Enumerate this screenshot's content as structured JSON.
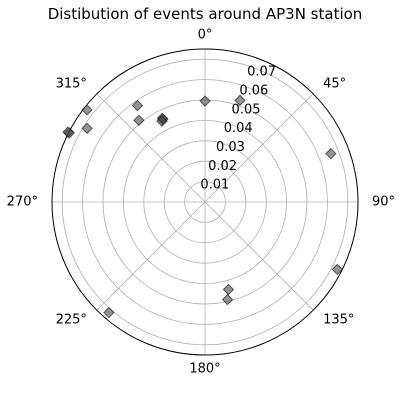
{
  "chart_data": {
    "type": "scatter",
    "projection": "polar",
    "title": "Distibution of events around AP3N station",
    "theta_direction": "clockwise",
    "theta_zero": "top",
    "theta_ticks_deg": [
      0,
      45,
      90,
      135,
      180,
      225,
      270,
      315
    ],
    "theta_tick_labels": [
      "0°",
      "45°",
      "90°",
      "135°",
      "180°",
      "225°",
      "270°",
      "315°"
    ],
    "r_ticks": [
      0.01,
      0.02,
      0.03,
      0.04,
      0.05,
      0.06,
      0.07
    ],
    "r_tick_labels": [
      "0.01",
      "0.02",
      "0.03",
      "0.04",
      "0.05",
      "0.06",
      "0.07"
    ],
    "rlim": [
      0,
      0.075
    ],
    "grid": true,
    "marker": "diamond",
    "marker_color": "#3c3c3c",
    "points": [
      {
        "theta_deg": 0,
        "r": 0.0495
      },
      {
        "theta_deg": 19,
        "r": 0.0527
      },
      {
        "theta_deg": 69,
        "r": 0.0661
      },
      {
        "theta_deg": 117,
        "r": 0.0728
      },
      {
        "theta_deg": 165,
        "r": 0.0444
      },
      {
        "theta_deg": 167,
        "r": 0.0491
      },
      {
        "theta_deg": 221,
        "r": 0.0718
      },
      {
        "theta_deg": 308,
        "r": 0.0734
      },
      {
        "theta_deg": 302,
        "r": 0.0681
      },
      {
        "theta_deg": 297,
        "r": 0.0746
      },
      {
        "theta_deg": 297,
        "r": 0.0754
      },
      {
        "theta_deg": 325,
        "r": 0.0577
      },
      {
        "theta_deg": 321,
        "r": 0.0515
      },
      {
        "theta_deg": 333,
        "r": 0.0461
      },
      {
        "theta_deg": 333,
        "r": 0.0455
      },
      {
        "theta_deg": 332,
        "r": 0.0449
      }
    ]
  }
}
